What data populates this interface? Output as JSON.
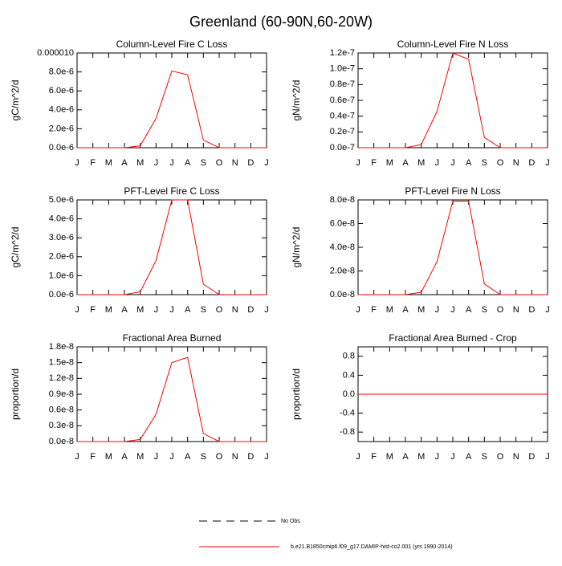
{
  "title": "Greenland (60-90N,60-20W)",
  "legend": [
    {
      "name": "No Obs",
      "color": "#000000",
      "dash": true
    },
    {
      "name": "b.e21.B1850cmip6.f09_g17.DAMIP-hist-co2.001 (yrs 1990-2014)",
      "color": "#ff0000",
      "dash": false
    }
  ],
  "chart_data": [
    {
      "type": "line",
      "title": "Column-Level Fire C Loss",
      "y_label": "gC/m^2/d",
      "categories": [
        "J",
        "F",
        "M",
        "A",
        "M",
        "J",
        "J",
        "A",
        "S",
        "O",
        "N",
        "D",
        "J"
      ],
      "values": [
        0,
        0,
        0,
        0,
        2e-07,
        3.1e-06,
        8.1e-06,
        7.7e-06,
        8e-07,
        0,
        0,
        0,
        0
      ],
      "color": "#ff0000",
      "ylim": [
        0,
        1e-05
      ],
      "yticks": [
        {
          "value": 0,
          "label": "0.0e-6"
        },
        {
          "value": 2e-06,
          "label": "2.0e-6"
        },
        {
          "value": 4e-06,
          "label": "4.0e-6"
        },
        {
          "value": 6e-06,
          "label": "6.0e-6"
        },
        {
          "value": 8e-06,
          "label": "8.0e-6"
        },
        {
          "value": 1e-05,
          "label": "0.000010"
        }
      ]
    },
    {
      "type": "line",
      "title": "Column-Level Fire N Loss",
      "y_label": "gN/m^2/d",
      "categories": [
        "J",
        "F",
        "M",
        "A",
        "M",
        "J",
        "J",
        "A",
        "S",
        "O",
        "N",
        "D",
        "J"
      ],
      "values": [
        0,
        0,
        0,
        0,
        4e-09,
        4.6e-08,
        1.2e-07,
        1.12e-07,
        1.3e-08,
        0,
        0,
        0,
        0
      ],
      "color": "#ff0000",
      "ylim": [
        0,
        1.2e-07
      ],
      "yticks": [
        {
          "value": 0,
          "label": "0.0e-7"
        },
        {
          "value": 2e-08,
          "label": "0.2e-7"
        },
        {
          "value": 4e-08,
          "label": "0.4e-7"
        },
        {
          "value": 6e-08,
          "label": "0.6e-7"
        },
        {
          "value": 8e-08,
          "label": "0.8e-7"
        },
        {
          "value": 1e-07,
          "label": "1.0e-7"
        },
        {
          "value": 1.2e-07,
          "label": "1.2e-7"
        }
      ]
    },
    {
      "type": "line",
      "title": "PFT-Level Fire C Loss",
      "y_label": "gC/m^2/d",
      "categories": [
        "J",
        "F",
        "M",
        "A",
        "M",
        "J",
        "J",
        "A",
        "S",
        "O",
        "N",
        "D",
        "J"
      ],
      "values": [
        0,
        0,
        0,
        0,
        1.5e-07,
        1.8e-06,
        5e-06,
        5e-06,
        5.5e-07,
        0,
        0,
        0,
        0
      ],
      "color": "#ff0000",
      "ylim": [
        0,
        5e-06
      ],
      "yticks": [
        {
          "value": 0,
          "label": "0.0e-6"
        },
        {
          "value": 1e-06,
          "label": "1.0e-6"
        },
        {
          "value": 2e-06,
          "label": "2.0e-6"
        },
        {
          "value": 3e-06,
          "label": "3.0e-6"
        },
        {
          "value": 4e-06,
          "label": "4.0e-6"
        },
        {
          "value": 5e-06,
          "label": "5.0e-6"
        }
      ]
    },
    {
      "type": "line",
      "title": "PFT-Level Fire N Loss",
      "y_label": "gN/m^2/d",
      "categories": [
        "J",
        "F",
        "M",
        "A",
        "M",
        "J",
        "J",
        "A",
        "S",
        "O",
        "N",
        "D",
        "J"
      ],
      "values": [
        0,
        0,
        0,
        0,
        2e-09,
        2.8e-08,
        7.9e-08,
        7.9e-08,
        9e-09,
        0,
        0,
        0,
        0
      ],
      "color": "#ff0000",
      "ylim": [
        0,
        8e-08
      ],
      "yticks": [
        {
          "value": 0,
          "label": "0.0e-8"
        },
        {
          "value": 2e-08,
          "label": "2.0e-8"
        },
        {
          "value": 4e-08,
          "label": "4.0e-8"
        },
        {
          "value": 6e-08,
          "label": "6.0e-8"
        },
        {
          "value": 8e-08,
          "label": "8.0e-8"
        }
      ]
    },
    {
      "type": "line",
      "title": "Fractional Area Burned",
      "y_label": "proportion/d",
      "categories": [
        "J",
        "F",
        "M",
        "A",
        "M",
        "J",
        "J",
        "A",
        "S",
        "O",
        "N",
        "D",
        "J"
      ],
      "values": [
        0,
        0,
        0,
        0,
        4e-10,
        5.2e-09,
        1.5e-08,
        1.6e-08,
        1.5e-09,
        0,
        0,
        0,
        0
      ],
      "color": "#ff0000",
      "ylim": [
        0,
        1.8e-08
      ],
      "yticks": [
        {
          "value": 0,
          "label": "0.0e-8"
        },
        {
          "value": 3e-09,
          "label": "0.3e-8"
        },
        {
          "value": 6e-09,
          "label": "0.6e-8"
        },
        {
          "value": 9e-09,
          "label": "0.9e-8"
        },
        {
          "value": 1.2e-08,
          "label": "1.2e-8"
        },
        {
          "value": 1.5e-08,
          "label": "1.5e-8"
        },
        {
          "value": 1.8e-08,
          "label": "1.8e-8"
        }
      ]
    },
    {
      "type": "line",
      "title": "Fractional Area Burned - Crop",
      "y_label": "proportion/d",
      "categories": [
        "J",
        "F",
        "M",
        "A",
        "M",
        "J",
        "J",
        "A",
        "S",
        "O",
        "N",
        "D",
        "J"
      ],
      "values": [
        0,
        0,
        0,
        0,
        0,
        0,
        0,
        0,
        0,
        0,
        0,
        0,
        0
      ],
      "color": "#ff0000",
      "ylim": [
        -1,
        1
      ],
      "yticks": [
        -0.8,
        -0.4,
        {
          "value": 0,
          "label": "0.0"
        },
        0.4,
        0.8
      ]
    }
  ]
}
